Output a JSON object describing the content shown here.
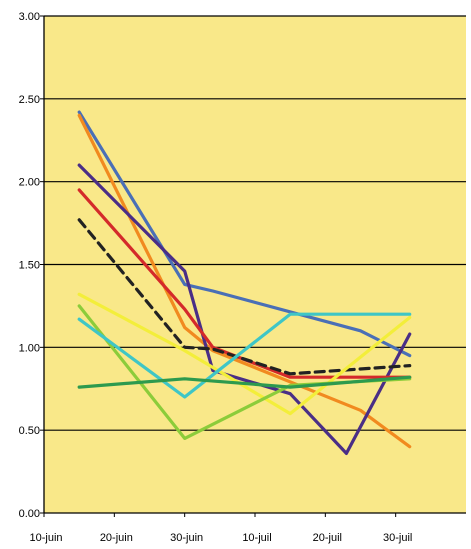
{
  "chart_data": {
    "type": "line",
    "title": "",
    "xlabel": "",
    "ylabel": "",
    "ylim": [
      0,
      3
    ],
    "grid": true,
    "legend": "none",
    "plot_background": "#f9e889",
    "y_ticks": [
      "0.00",
      "0.50",
      "1.00",
      "1.50",
      "2.00",
      "2.50",
      "3.00"
    ],
    "categories": [
      "10-juin",
      "20-juin",
      "30-juin",
      "10-juil",
      "20-juil",
      "30-juil"
    ],
    "series": [
      {
        "color": "#4a6fb6",
        "style": "solid",
        "x": [
          0.5,
          2.0,
          2.4,
          4.5,
          5.2
        ],
        "y": [
          2.42,
          1.38,
          1.34,
          1.1,
          0.95
        ]
      },
      {
        "color": "#f18a1f",
        "style": "solid",
        "x": [
          0.5,
          2.0,
          2.4,
          4.5,
          5.2
        ],
        "y": [
          2.4,
          1.12,
          0.98,
          0.62,
          0.4
        ]
      },
      {
        "color": "#4a2e86",
        "style": "solid",
        "x": [
          0.5,
          2.0,
          2.4,
          3.5,
          4.3,
          5.2
        ],
        "y": [
          2.1,
          1.46,
          0.86,
          0.72,
          0.36,
          1.08
        ]
      },
      {
        "color": "#d42a2a",
        "style": "solid",
        "x": [
          0.5,
          2.0,
          2.4,
          3.5,
          5.2
        ],
        "y": [
          1.95,
          1.23,
          1.0,
          0.82,
          0.82
        ]
      },
      {
        "color": "#222222",
        "style": "dashed",
        "x": [
          0.5,
          2.0,
          2.4,
          3.5,
          5.2
        ],
        "y": [
          1.77,
          1.0,
          0.99,
          0.84,
          0.89
        ]
      },
      {
        "color": "#f3ee3a",
        "style": "solid",
        "x": [
          0.5,
          2.0,
          3.5,
          5.2
        ],
        "y": [
          1.32,
          0.98,
          0.6,
          1.18
        ]
      },
      {
        "color": "#8ccc3a",
        "style": "solid",
        "x": [
          0.5,
          2.0,
          3.5,
          5.2
        ],
        "y": [
          1.25,
          0.45,
          0.77,
          0.81
        ]
      },
      {
        "color": "#3fc6c6",
        "style": "solid",
        "x": [
          0.5,
          2.0,
          3.5,
          5.2
        ],
        "y": [
          1.17,
          0.7,
          1.2,
          1.2
        ]
      },
      {
        "color": "#2d9a4e",
        "style": "solid",
        "x": [
          0.5,
          2.0,
          3.5,
          5.2
        ],
        "y": [
          0.76,
          0.81,
          0.76,
          0.82
        ]
      }
    ]
  }
}
